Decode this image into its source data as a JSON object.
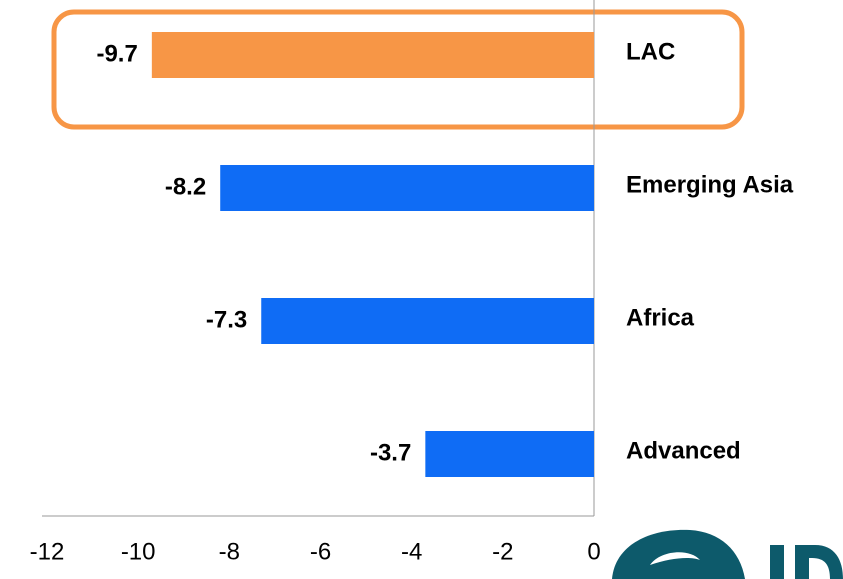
{
  "chart_data": {
    "type": "hbar",
    "categories": [
      "LAC",
      "Emerging Asia",
      "Africa",
      "Advanced"
    ],
    "values": [
      -9.7,
      -8.2,
      -7.3,
      -3.7
    ],
    "colors": [
      "#f79646",
      "#0f6cf5",
      "#0f6cf5",
      "#0f6cf5"
    ],
    "xlim": [
      -12,
      0
    ],
    "xticks": [
      -12,
      -10,
      -8,
      -6,
      -4,
      -2,
      0
    ],
    "highlight": "LAC"
  }
}
